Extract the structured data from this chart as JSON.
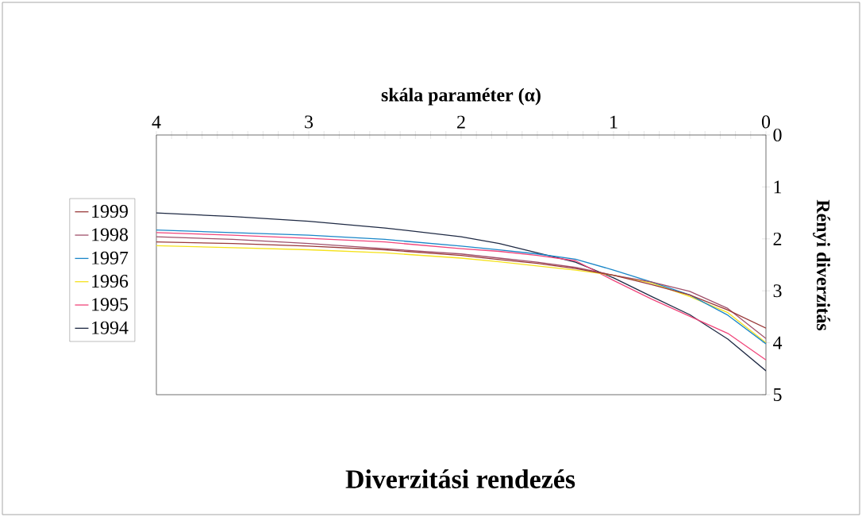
{
  "chart_data": {
    "type": "line",
    "title": "Diverzitási rendezés",
    "xlabel": "skála paraméter (α)",
    "ylabel": "Rényi diverzitás",
    "x": [
      0,
      0.25,
      0.5,
      0.75,
      1,
      1.25,
      1.5,
      1.75,
      2,
      2.5,
      3,
      3.5,
      4
    ],
    "series": [
      {
        "name": "1994",
        "color": "#1f2a44",
        "values": [
          4.54,
          3.93,
          3.46,
          3.11,
          2.75,
          2.45,
          2.27,
          2.09,
          1.96,
          1.79,
          1.66,
          1.57,
          1.5
        ]
      },
      {
        "name": "1995",
        "color": "#f0457a",
        "values": [
          4.33,
          3.82,
          3.49,
          3.16,
          2.8,
          2.42,
          2.32,
          2.24,
          2.19,
          2.06,
          1.99,
          1.93,
          1.88
        ]
      },
      {
        "name": "1996",
        "color": "#f5e21c",
        "values": [
          4.0,
          3.42,
          3.11,
          2.85,
          2.7,
          2.6,
          2.52,
          2.44,
          2.37,
          2.27,
          2.21,
          2.17,
          2.13
        ]
      },
      {
        "name": "1997",
        "color": "#1a86c8",
        "values": [
          4.02,
          3.47,
          3.08,
          2.83,
          2.6,
          2.39,
          2.29,
          2.21,
          2.14,
          2.01,
          1.93,
          1.88,
          1.83
        ]
      },
      {
        "name": "1998",
        "color": "#a0506a",
        "values": [
          3.92,
          3.34,
          3.01,
          2.83,
          2.7,
          2.55,
          2.45,
          2.37,
          2.29,
          2.19,
          2.09,
          2.01,
          1.96
        ]
      },
      {
        "name": "1999",
        "color": "#9a3a3a",
        "values": [
          3.72,
          3.37,
          3.08,
          2.88,
          2.7,
          2.57,
          2.47,
          2.4,
          2.32,
          2.21,
          2.14,
          2.09,
          2.06
        ]
      }
    ],
    "xlim": [
      4,
      0
    ],
    "ylim": [
      5,
      0
    ],
    "xticks": [
      0,
      {
        "value": 0.1,
        "label": null
      },
      {
        "value": 0.2,
        "label": null
      },
      {
        "value": 0.3,
        "label": null
      },
      {
        "value": 0.4,
        "label": null
      },
      {
        "value": 0.5,
        "label": null
      },
      {
        "value": 0.6,
        "label": null
      },
      {
        "value": 0.7,
        "label": null
      },
      {
        "value": 0.8,
        "label": null
      },
      {
        "value": 0.9,
        "label": null
      },
      1,
      {
        "value": 1.1,
        "label": null
      },
      {
        "value": 1.2,
        "label": null
      },
      {
        "value": 1.3,
        "label": null
      },
      {
        "value": 1.4,
        "label": null
      },
      {
        "value": 1.5,
        "label": null
      },
      {
        "value": 1.6,
        "label": null
      },
      {
        "value": 1.7,
        "label": null
      },
      {
        "value": 1.8,
        "label": null
      },
      {
        "value": 1.9,
        "label": null
      },
      2,
      {
        "value": 2.1,
        "label": null
      },
      {
        "value": 2.2,
        "label": null
      },
      {
        "value": 2.3,
        "label": null
      },
      {
        "value": 2.4,
        "label": null
      },
      {
        "value": 2.5,
        "label": null
      },
      {
        "value": 2.6,
        "label": null
      },
      {
        "value": 2.7,
        "label": null
      },
      {
        "value": 2.8,
        "label": null
      },
      {
        "value": 2.9,
        "label": null
      },
      3,
      {
        "value": 3.1,
        "label": null
      },
      {
        "value": 3.2,
        "label": null
      },
      {
        "value": 3.3,
        "label": null
      },
      {
        "value": 3.4,
        "label": null
      },
      {
        "value": 3.5,
        "label": null
      },
      {
        "value": 3.6,
        "label": null
      },
      {
        "value": 3.7,
        "label": null
      },
      {
        "value": 3.8,
        "label": null
      },
      {
        "value": 3.9,
        "label": null
      },
      4
    ],
    "yticks": [
      0,
      1,
      2,
      3,
      4,
      5
    ],
    "legend": "left"
  }
}
